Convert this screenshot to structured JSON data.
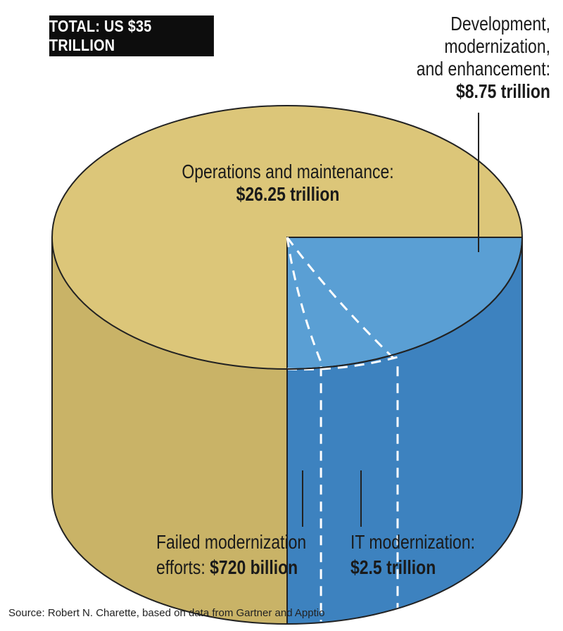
{
  "total_label": "TOTAL: US $35 TRILLION",
  "source": "Source: Robert N. Charette, based on data from Gartner and Apptio",
  "colors": {
    "ops_top": "#dcc679",
    "ops_side": "#c9b367",
    "it_top": "#5a9fd4",
    "it_side": "#3d82bf",
    "outline": "#222222",
    "dash": "#ffffff"
  },
  "chart_data": {
    "type": "pie",
    "title": "TOTAL: US $35 TRILLION",
    "total": 35,
    "unit": "US$ trillion",
    "slices": [
      {
        "label": "Operations and maintenance:",
        "value_text": "$26.25 trillion",
        "value": 26.25
      },
      {
        "label": "Development, modernization, and enhancement:",
        "value_text": "$8.75 trillion",
        "value": 8.75,
        "subslices": [
          {
            "label": "Failed modernization efforts:",
            "value_text": "$720 billion",
            "value": 0.72
          },
          {
            "label": "IT modernization:",
            "value_text": "$2.5 trillion",
            "value": 2.5
          }
        ]
      }
    ]
  },
  "labels": {
    "dev_line1": "Development,",
    "dev_line2": "modernization,",
    "dev_line3": "and enhancement:",
    "dev_value": "$8.75 trillion",
    "ops_line1": "Operations and maintenance:",
    "ops_value": "$26.25 trillion",
    "failed_line1": "Failed modernization",
    "failed_line2": "efforts:",
    "failed_value": "$720 billion",
    "itmod_line1": "IT modernization:",
    "itmod_value": "$2.5 trillion"
  }
}
